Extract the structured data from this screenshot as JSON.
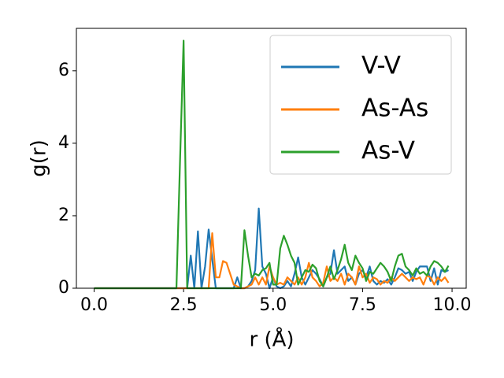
{
  "chart_data": {
    "type": "line",
    "xlabel": "r (Å)",
    "ylabel": "g(r)",
    "x": [
      0.0,
      0.1,
      0.2,
      0.3,
      0.4,
      0.5,
      0.6,
      0.7,
      0.8,
      0.9,
      1.0,
      1.1,
      1.2,
      1.3,
      1.4,
      1.5,
      1.6,
      1.7,
      1.8,
      1.9,
      2.0,
      2.1,
      2.2,
      2.3,
      2.4,
      2.5,
      2.6,
      2.7,
      2.8,
      2.9,
      3.0,
      3.1,
      3.2,
      3.3,
      3.4,
      3.5,
      3.6,
      3.7,
      3.8,
      3.9,
      4.0,
      4.1,
      4.2,
      4.3,
      4.4,
      4.5,
      4.6,
      4.7,
      4.8,
      4.9,
      5.0,
      5.1,
      5.2,
      5.3,
      5.4,
      5.5,
      5.6,
      5.7,
      5.8,
      5.9,
      6.0,
      6.1,
      6.2,
      6.3,
      6.4,
      6.5,
      6.6,
      6.7,
      6.8,
      6.9,
      7.0,
      7.1,
      7.2,
      7.3,
      7.4,
      7.5,
      7.6,
      7.7,
      7.8,
      7.9,
      8.0,
      8.1,
      8.2,
      8.3,
      8.4,
      8.5,
      8.6,
      8.7,
      8.8,
      8.9,
      9.0,
      9.1,
      9.2,
      9.3,
      9.4,
      9.5,
      9.6,
      9.7,
      9.8,
      9.9
    ],
    "series": [
      {
        "name": "V-V",
        "color": "#1f77b4",
        "values": [
          0,
          0,
          0,
          0,
          0,
          0,
          0,
          0,
          0,
          0,
          0,
          0,
          0,
          0,
          0,
          0,
          0,
          0,
          0,
          0,
          0,
          0,
          0,
          0,
          0,
          0,
          0,
          0.9,
          0,
          1.57,
          0,
          0.6,
          1.62,
          0.8,
          0,
          0,
          0,
          0,
          0,
          0,
          0.3,
          0,
          0,
          0.05,
          0.2,
          0.5,
          2.2,
          0.6,
          0.4,
          0,
          0.3,
          0.05,
          0,
          0.05,
          0.2,
          0.05,
          0.4,
          0.85,
          0.3,
          0.1,
          0.3,
          0.5,
          0.4,
          0.25,
          0.05,
          0.3,
          0.4,
          1.05,
          0.4,
          0.5,
          0.6,
          0.2,
          0.3,
          0.1,
          0.4,
          0.5,
          0.3,
          0.6,
          0.2,
          0.1,
          0.2,
          0.15,
          0.25,
          0.1,
          0.3,
          0.55,
          0.5,
          0.4,
          0.45,
          0.2,
          0.45,
          0.6,
          0.6,
          0.6,
          0.2,
          0.55,
          0.1,
          0.5,
          0.45,
          0.5
        ]
      },
      {
        "name": "As-As",
        "color": "#ff7f0e",
        "values": [
          0,
          0,
          0,
          0,
          0,
          0,
          0,
          0,
          0,
          0,
          0,
          0,
          0,
          0,
          0,
          0,
          0,
          0,
          0,
          0,
          0,
          0,
          0,
          0,
          0,
          0,
          0,
          0,
          0,
          0,
          0,
          0,
          0,
          1.52,
          0.3,
          0.3,
          0.75,
          0.7,
          0.4,
          0.1,
          0.05,
          0,
          0,
          0.05,
          0.1,
          0.3,
          0.1,
          0.3,
          0.1,
          0.6,
          0.3,
          0.1,
          0.15,
          0.1,
          0.3,
          0.2,
          0.1,
          0.3,
          0.1,
          0.3,
          0.7,
          0.3,
          0.2,
          0.05,
          0.15,
          0.6,
          0.2,
          0.3,
          0.2,
          0.4,
          0.1,
          0.4,
          0.3,
          0.1,
          0.6,
          0.3,
          0.4,
          0.15,
          0.3,
          0.25,
          0.1,
          0.2,
          0.15,
          0.3,
          0.2,
          0.3,
          0.4,
          0.3,
          0.2,
          0.3,
          0.25,
          0.3,
          0.1,
          0.35,
          0.3,
          0.1,
          0.3,
          0.2,
          0.3,
          0.15
        ]
      },
      {
        "name": "As-V",
        "color": "#2ca02c",
        "values": [
          0,
          0,
          0,
          0,
          0,
          0,
          0,
          0,
          0,
          0,
          0,
          0,
          0,
          0,
          0,
          0,
          0,
          0,
          0,
          0,
          0,
          0,
          0,
          0,
          3.5,
          6.83,
          0,
          0,
          0,
          0,
          0,
          0,
          0,
          0,
          0,
          0,
          0,
          0,
          0,
          0,
          0,
          0,
          1.6,
          0.9,
          0.3,
          0.4,
          0.35,
          0.5,
          0.55,
          0.7,
          0.1,
          0.1,
          1.1,
          1.45,
          1.2,
          0.9,
          0.7,
          0.1,
          0.3,
          0.5,
          0.45,
          0.65,
          0.55,
          0.2,
          0.05,
          0.3,
          0.6,
          0.25,
          0.5,
          0.8,
          1.2,
          0.7,
          0.5,
          0.9,
          0.7,
          0.55,
          0.2,
          0.45,
          0.4,
          0.55,
          0.7,
          0.6,
          0.45,
          0.2,
          0.6,
          0.9,
          0.95,
          0.6,
          0.5,
          0.35,
          0.55,
          0.4,
          0.45,
          0.35,
          0.6,
          0.75,
          0.7,
          0.6,
          0.45,
          0.62
        ]
      }
    ],
    "xlim": [
      -0.495,
      10.395
    ],
    "ylim": [
      0,
      7.17
    ],
    "xticks": [
      {
        "value": 0,
        "label": "0.0"
      },
      {
        "value": 2.5,
        "label": "2.5"
      },
      {
        "value": 5,
        "label": "5.0"
      },
      {
        "value": 7.5,
        "label": "7.5"
      },
      {
        "value": 10,
        "label": "10.0"
      }
    ],
    "yticks": [
      0,
      2,
      4,
      6
    ],
    "grid": false,
    "legend": "upper right"
  }
}
